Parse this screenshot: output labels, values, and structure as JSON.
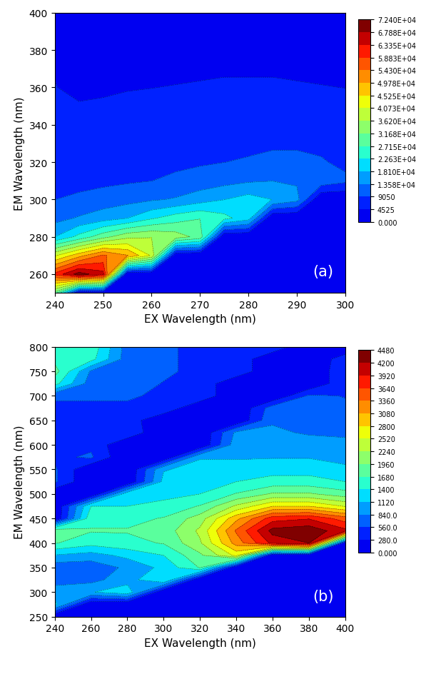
{
  "chart_data": [
    {
      "type": "contour",
      "annotation": "(a)",
      "x_label": "EX Wavelength (nm)",
      "y_label": "EM Wavelength (nm)",
      "x": [
        240,
        245,
        250,
        255,
        260,
        265,
        270,
        275,
        280,
        285,
        290,
        295,
        300
      ],
      "y": [
        250,
        260,
        270,
        280,
        290,
        300,
        310,
        320,
        330,
        340,
        350,
        360,
        370,
        380,
        390,
        400
      ],
      "values": [
        [
          30000,
          0,
          0,
          0,
          0,
          0,
          0,
          0,
          0,
          0,
          0,
          0,
          0
        ],
        [
          60000,
          70000,
          65000,
          0,
          0,
          0,
          0,
          0,
          0,
          0,
          0,
          0,
          0
        ],
        [
          40000,
          48000,
          55000,
          50000,
          40000,
          0,
          0,
          0,
          0,
          0,
          0,
          0,
          0
        ],
        [
          18000,
          24000,
          30000,
          35000,
          36000,
          34000,
          30000,
          0,
          0,
          0,
          0,
          0,
          0
        ],
        [
          12000,
          14000,
          16000,
          18000,
          22000,
          25000,
          27000,
          24000,
          20000,
          0,
          0,
          0,
          0
        ],
        [
          9000,
          10000,
          11000,
          12000,
          13000,
          14000,
          16000,
          18000,
          20000,
          18000,
          15000,
          0,
          0
        ],
        [
          7000,
          7500,
          8000,
          8500,
          9000,
          10000,
          11000,
          12000,
          13000,
          13500,
          13000,
          12000,
          10000
        ],
        [
          6000,
          6200,
          6500,
          7000,
          7500,
          8000,
          8500,
          9000,
          9500,
          10000,
          10000,
          9500,
          8000
        ],
        [
          5500,
          5600,
          5800,
          6000,
          6200,
          6500,
          7000,
          7500,
          8000,
          8500,
          8500,
          8000,
          7000
        ],
        [
          5000,
          5000,
          5200,
          5400,
          5600,
          5800,
          6000,
          6200,
          6500,
          7000,
          7000,
          6500,
          6000
        ],
        [
          4800,
          4700,
          4800,
          5000,
          5000,
          5200,
          5300,
          5500,
          5600,
          5800,
          5800,
          5500,
          5200
        ],
        [
          4600,
          4000,
          4200,
          4400,
          4500,
          4600,
          4700,
          4800,
          4800,
          4800,
          4700,
          4600,
          4500
        ],
        [
          4400,
          3500,
          3600,
          3800,
          4000,
          4100,
          4200,
          4300,
          4300,
          4300,
          4200,
          4100,
          4000
        ],
        [
          4200,
          3200,
          3300,
          3500,
          3600,
          3700,
          3800,
          3800,
          3800,
          3800,
          3700,
          3600,
          3500
        ],
        [
          4000,
          3000,
          3000,
          3200,
          3300,
          3400,
          3400,
          3400,
          3400,
          3400,
          3300,
          3200,
          3100
        ],
        [
          3800,
          2800,
          2800,
          3000,
          3000,
          3100,
          3100,
          3100,
          3100,
          3000,
          3000,
          2900,
          2800
        ]
      ],
      "xlim": [
        240,
        300
      ],
      "ylim": [
        250,
        400
      ],
      "xticks": [
        240,
        250,
        260,
        270,
        280,
        290,
        300
      ],
      "yticks": [
        260,
        280,
        300,
        320,
        340,
        360,
        380,
        400
      ],
      "clim": [
        0,
        72400
      ],
      "cticks": [
        {
          "value": 0,
          "label": "0.000"
        },
        4525,
        9050,
        {
          "value": 13575,
          "label": "1.358E+04"
        },
        {
          "value": 18100,
          "label": "1.810E+04"
        },
        {
          "value": 22625,
          "label": "2.263E+04"
        },
        {
          "value": 27150,
          "label": "2.715E+04"
        },
        {
          "value": 31675,
          "label": "3.168E+04"
        },
        {
          "value": 36200,
          "label": "3.620E+04"
        },
        {
          "value": 40725,
          "label": "4.073E+04"
        },
        {
          "value": 45250,
          "label": "4.525E+04"
        },
        {
          "value": 49775,
          "label": "4.978E+04"
        },
        {
          "value": 54300,
          "label": "5.430E+04"
        },
        {
          "value": 58825,
          "label": "5.883E+04"
        },
        {
          "value": 63350,
          "label": "6.335E+04"
        },
        {
          "value": 67875,
          "label": "6.788E+04"
        },
        {
          "value": 72400,
          "label": "7.240E+04"
        }
      ]
    },
    {
      "type": "contour",
      "annotation": "(b)",
      "x_label": "EX Wavelength (nm)",
      "y_label": "EM Wavelength (nm)",
      "x": [
        240,
        260,
        280,
        300,
        320,
        340,
        360,
        380,
        400
      ],
      "y": [
        250,
        275,
        300,
        325,
        350,
        375,
        400,
        425,
        450,
        475,
        500,
        525,
        550,
        575,
        600,
        625,
        650,
        675,
        700,
        725,
        750,
        775,
        800
      ],
      "values": [
        [
          0,
          0,
          0,
          0,
          0,
          0,
          0,
          0,
          0
        ],
        [
          1200,
          0,
          0,
          0,
          0,
          0,
          0,
          0,
          0
        ],
        [
          1000,
          1100,
          1300,
          0,
          0,
          0,
          0,
          0,
          0
        ],
        [
          700,
          750,
          1000,
          1400,
          0,
          0,
          0,
          0,
          0
        ],
        [
          650,
          650,
          900,
          1200,
          1700,
          0,
          0,
          0,
          0
        ],
        [
          1100,
          1000,
          1200,
          1400,
          1900,
          2600,
          0,
          0,
          0
        ],
        [
          1700,
          1500,
          1600,
          1700,
          2200,
          3200,
          4000,
          4200,
          0
        ],
        [
          1900,
          1700,
          1700,
          1800,
          2300,
          3400,
          4300,
          4400,
          4000
        ],
        [
          0,
          1600,
          1600,
          1700,
          2100,
          3000,
          3800,
          3900,
          3500
        ],
        [
          0,
          1400,
          1400,
          1500,
          1700,
          2300,
          2800,
          2800,
          2500
        ],
        [
          0,
          0,
          1300,
          1300,
          1400,
          1700,
          2000,
          2000,
          1800
        ],
        [
          600,
          0,
          0,
          1200,
          1300,
          1400,
          1500,
          1500,
          1400
        ],
        [
          600,
          0,
          0,
          1100,
          1200,
          1200,
          1300,
          1300,
          1200
        ],
        [
          500,
          600,
          0,
          0,
          1100,
          1100,
          1100,
          1100,
          1000
        ],
        [
          500,
          500,
          0,
          0,
          0,
          1000,
          1000,
          1000,
          900
        ],
        [
          450,
          450,
          500,
          0,
          0,
          900,
          900,
          800,
          800
        ],
        [
          400,
          400,
          450,
          0,
          0,
          0,
          800,
          700,
          700
        ],
        [
          500,
          500,
          500,
          500,
          0,
          0,
          700,
          600,
          600
        ],
        [
          600,
          600,
          600,
          500,
          500,
          0,
          0,
          600,
          550
        ],
        [
          1500,
          700,
          650,
          550,
          500,
          0,
          0,
          0,
          500
        ],
        [
          1800,
          800,
          700,
          600,
          500,
          500,
          0,
          0,
          500
        ],
        [
          1600,
          1500,
          700,
          600,
          500,
          500,
          0,
          0,
          450
        ],
        [
          1400,
          1600,
          700,
          600,
          500,
          500,
          500,
          0,
          0
        ]
      ],
      "xlim": [
        240,
        400
      ],
      "ylim": [
        250,
        800
      ],
      "xticks": [
        240,
        260,
        280,
        300,
        320,
        340,
        360,
        380,
        400
      ],
      "yticks": [
        250,
        300,
        350,
        400,
        450,
        500,
        550,
        600,
        650,
        700,
        750,
        800
      ],
      "clim": [
        0,
        4480
      ],
      "cticks": [
        {
          "value": 0,
          "label": "0.000"
        },
        {
          "value": 280,
          "label": "280.0"
        },
        {
          "value": 560,
          "label": "560.0"
        },
        {
          "value": 840,
          "label": "840.0"
        },
        1120,
        1400,
        1680,
        1960,
        2240,
        2520,
        2800,
        3080,
        3360,
        3640,
        3920,
        4200,
        4480
      ]
    }
  ]
}
